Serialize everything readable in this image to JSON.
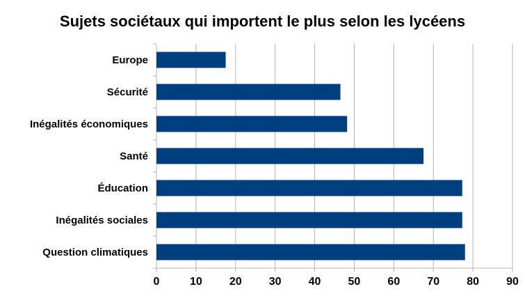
{
  "chart_data": {
    "type": "bar",
    "orientation": "horizontal",
    "title": "Sujets sociétaux qui importent le plus selon les lycéens",
    "categories": [
      "Europe",
      "Sécurité",
      "Inégalités économiques",
      "Santé",
      "Éducation",
      "Inégalités sociales",
      "Question climatiques"
    ],
    "values": [
      17.5,
      46.5,
      48.2,
      67.5,
      77.3,
      77.3,
      78
    ],
    "xlim": [
      0,
      90
    ],
    "xticks": [
      0,
      10,
      20,
      30,
      40,
      50,
      60,
      70,
      80,
      90
    ],
    "xlabel": "",
    "ylabel": "",
    "grid": true,
    "legend": "none",
    "bar_color": "#003f7f",
    "grid_color": "#b3b3b3"
  }
}
